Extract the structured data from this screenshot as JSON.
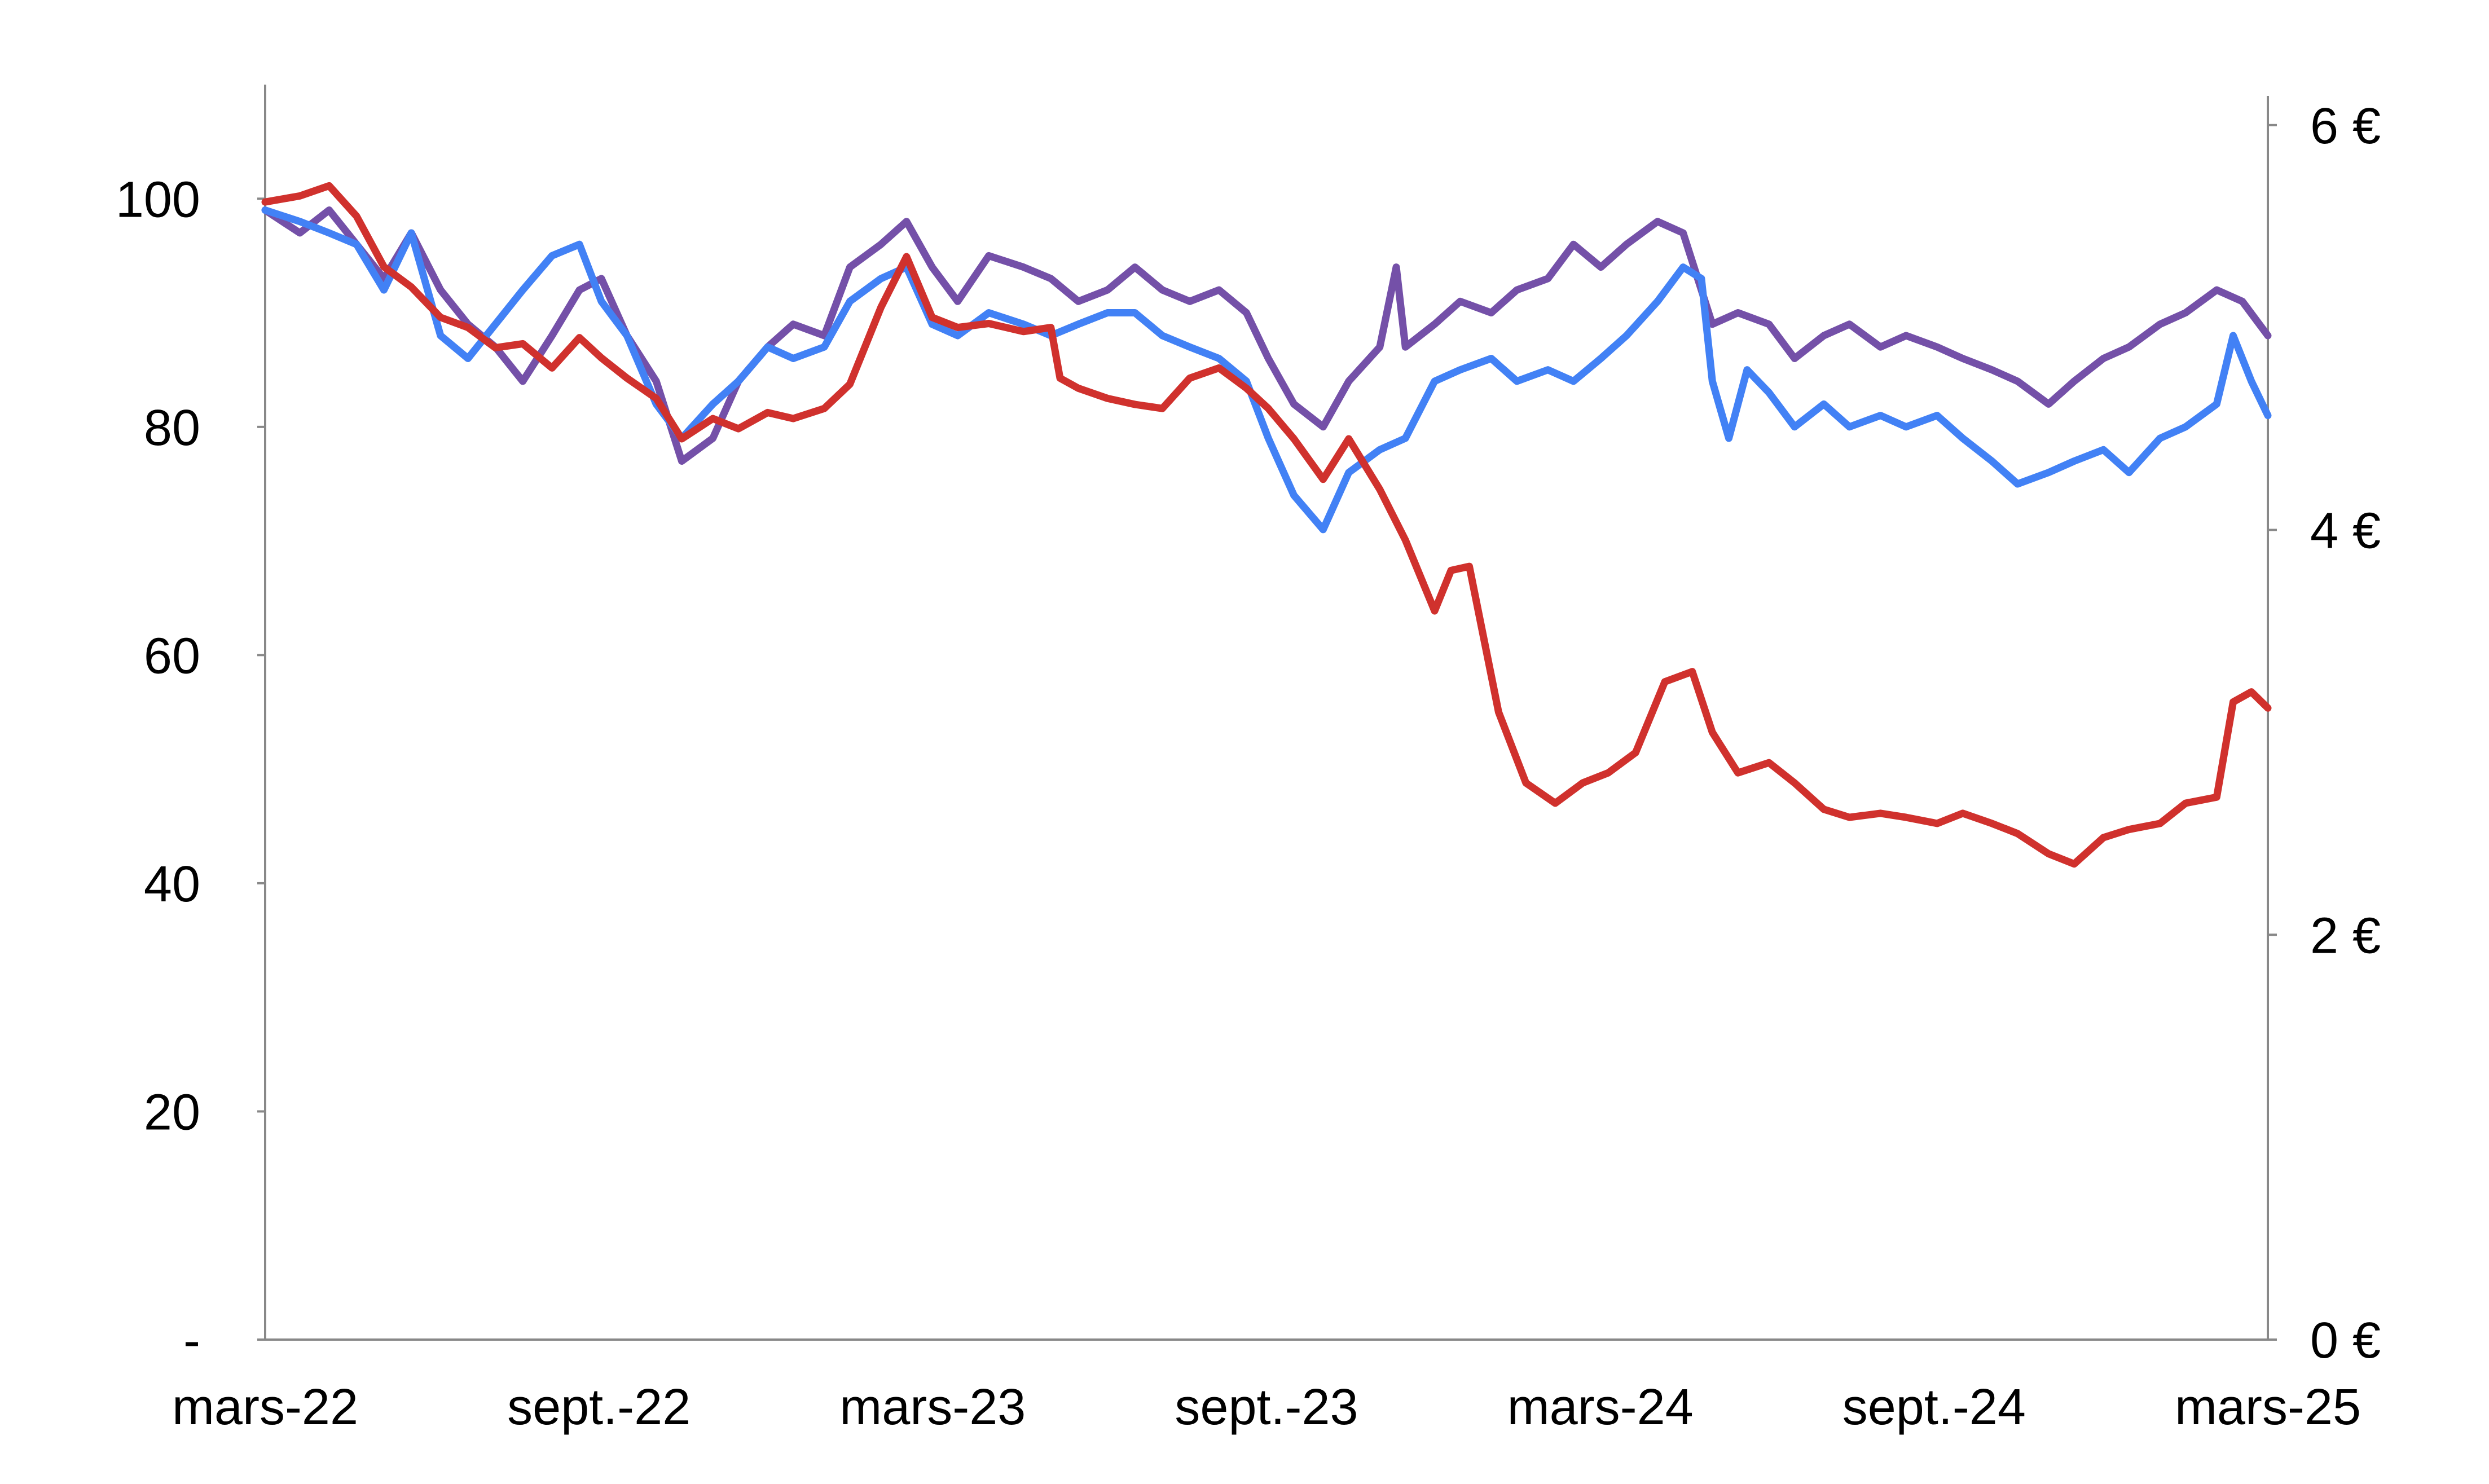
{
  "chart_data": {
    "type": "line",
    "title": "",
    "xlabel": "",
    "ylabel": "",
    "x_ticks": [
      "mars-22",
      "sept.-22",
      "mars-23",
      "sept.-23",
      "mars-24",
      "sept.-24",
      "mars-25"
    ],
    "x_range": [
      "2022-03-01",
      "2025-03-01"
    ],
    "y_left": {
      "range": [
        0,
        110
      ],
      "ticks": [
        {
          "value": 0,
          "label": "-"
        },
        {
          "value": 20,
          "label": "20"
        },
        {
          "value": 40,
          "label": "40"
        },
        {
          "value": 60,
          "label": "60"
        },
        {
          "value": 80,
          "label": "80"
        },
        {
          "value": 100,
          "label": "100"
        }
      ]
    },
    "y_right": {
      "range": [
        0,
        6.2
      ],
      "ticks": [
        {
          "value": 0,
          "label": "0 €"
        },
        {
          "value": 2,
          "label": "2 €"
        },
        {
          "value": 4,
          "label": "4 €"
        },
        {
          "value": 6,
          "label": "6 €"
        }
      ]
    },
    "grid": false,
    "legend": "none",
    "series": [
      {
        "color": "#7450A8",
        "axis": "left",
        "points": [
          [
            "2022-03-01",
            99
          ],
          [
            "2022-03-20",
            97
          ],
          [
            "2022-04-05",
            99
          ],
          [
            "2022-04-20",
            96
          ],
          [
            "2022-05-05",
            93
          ],
          [
            "2022-05-20",
            97
          ],
          [
            "2022-06-05",
            92
          ],
          [
            "2022-06-20",
            89
          ],
          [
            "2022-07-05",
            87
          ],
          [
            "2022-07-20",
            84
          ],
          [
            "2022-08-05",
            88
          ],
          [
            "2022-08-20",
            92
          ],
          [
            "2022-09-01",
            93
          ],
          [
            "2022-09-15",
            88
          ],
          [
            "2022-10-01",
            84
          ],
          [
            "2022-10-15",
            77
          ],
          [
            "2022-11-01",
            79
          ],
          [
            "2022-11-15",
            84
          ],
          [
            "2022-12-01",
            87
          ],
          [
            "2022-12-15",
            89
          ],
          [
            "2023-01-01",
            88
          ],
          [
            "2023-01-15",
            94
          ],
          [
            "2023-02-01",
            96
          ],
          [
            "2023-02-15",
            98
          ],
          [
            "2023-03-01",
            94
          ],
          [
            "2023-03-15",
            91
          ],
          [
            "2023-04-01",
            95
          ],
          [
            "2023-04-20",
            94
          ],
          [
            "2023-05-05",
            93
          ],
          [
            "2023-05-20",
            91
          ],
          [
            "2023-06-05",
            92
          ],
          [
            "2023-06-20",
            94
          ],
          [
            "2023-07-05",
            92
          ],
          [
            "2023-07-20",
            91
          ],
          [
            "2023-08-05",
            92
          ],
          [
            "2023-08-20",
            90
          ],
          [
            "2023-09-01",
            86
          ],
          [
            "2023-09-15",
            82
          ],
          [
            "2023-10-01",
            80
          ],
          [
            "2023-10-15",
            84
          ],
          [
            "2023-11-01",
            87
          ],
          [
            "2023-11-10",
            94
          ],
          [
            "2023-11-15",
            87
          ],
          [
            "2023-12-01",
            89
          ],
          [
            "2023-12-15",
            91
          ],
          [
            "2024-01-01",
            90
          ],
          [
            "2024-01-15",
            92
          ],
          [
            "2024-02-01",
            93
          ],
          [
            "2024-02-15",
            96
          ],
          [
            "2024-03-01",
            94
          ],
          [
            "2024-03-15",
            96
          ],
          [
            "2024-04-01",
            98
          ],
          [
            "2024-04-15",
            97
          ],
          [
            "2024-05-01",
            89
          ],
          [
            "2024-05-15",
            90
          ],
          [
            "2024-06-01",
            89
          ],
          [
            "2024-06-15",
            86
          ],
          [
            "2024-07-01",
            88
          ],
          [
            "2024-07-15",
            89
          ],
          [
            "2024-08-01",
            87
          ],
          [
            "2024-08-15",
            88
          ],
          [
            "2024-09-01",
            87
          ],
          [
            "2024-09-15",
            86
          ],
          [
            "2024-10-01",
            85
          ],
          [
            "2024-10-15",
            84
          ],
          [
            "2024-11-01",
            82
          ],
          [
            "2024-11-15",
            84
          ],
          [
            "2024-12-01",
            86
          ],
          [
            "2024-12-15",
            87
          ],
          [
            "2025-01-01",
            89
          ],
          [
            "2025-01-15",
            90
          ],
          [
            "2025-02-01",
            92
          ],
          [
            "2025-02-15",
            91
          ],
          [
            "2025-03-01",
            88
          ]
        ]
      },
      {
        "color": "#4281F5",
        "axis": "left",
        "points": [
          [
            "2022-03-01",
            99
          ],
          [
            "2022-03-20",
            98
          ],
          [
            "2022-04-05",
            97
          ],
          [
            "2022-04-20",
            96
          ],
          [
            "2022-05-05",
            92
          ],
          [
            "2022-05-20",
            97
          ],
          [
            "2022-06-05",
            88
          ],
          [
            "2022-06-20",
            86
          ],
          [
            "2022-07-05",
            89
          ],
          [
            "2022-07-20",
            92
          ],
          [
            "2022-08-05",
            95
          ],
          [
            "2022-08-20",
            96
          ],
          [
            "2022-09-01",
            91
          ],
          [
            "2022-09-15",
            88
          ],
          [
            "2022-10-01",
            82
          ],
          [
            "2022-10-15",
            79
          ],
          [
            "2022-11-01",
            82
          ],
          [
            "2022-11-15",
            84
          ],
          [
            "2022-12-01",
            87
          ],
          [
            "2022-12-15",
            86
          ],
          [
            "2023-01-01",
            87
          ],
          [
            "2023-01-15",
            91
          ],
          [
            "2023-02-01",
            93
          ],
          [
            "2023-02-15",
            94
          ],
          [
            "2023-03-01",
            89
          ],
          [
            "2023-03-15",
            88
          ],
          [
            "2023-04-01",
            90
          ],
          [
            "2023-04-20",
            89
          ],
          [
            "2023-05-05",
            88
          ],
          [
            "2023-05-20",
            89
          ],
          [
            "2023-06-05",
            90
          ],
          [
            "2023-06-20",
            90
          ],
          [
            "2023-07-05",
            88
          ],
          [
            "2023-07-20",
            87
          ],
          [
            "2023-08-05",
            86
          ],
          [
            "2023-08-20",
            84
          ],
          [
            "2023-09-01",
            79
          ],
          [
            "2023-09-15",
            74
          ],
          [
            "2023-10-01",
            71
          ],
          [
            "2023-10-15",
            76
          ],
          [
            "2023-11-01",
            78
          ],
          [
            "2023-11-15",
            79
          ],
          [
            "2023-12-01",
            84
          ],
          [
            "2023-12-15",
            85
          ],
          [
            "2024-01-01",
            86
          ],
          [
            "2024-01-15",
            84
          ],
          [
            "2024-02-01",
            85
          ],
          [
            "2024-02-15",
            84
          ],
          [
            "2024-03-01",
            86
          ],
          [
            "2024-03-15",
            88
          ],
          [
            "2024-04-01",
            91
          ],
          [
            "2024-04-15",
            94
          ],
          [
            "2024-04-25",
            93
          ],
          [
            "2024-05-01",
            84
          ],
          [
            "2024-05-10",
            79
          ],
          [
            "2024-05-20",
            85
          ],
          [
            "2024-06-01",
            83
          ],
          [
            "2024-06-15",
            80
          ],
          [
            "2024-07-01",
            82
          ],
          [
            "2024-07-15",
            80
          ],
          [
            "2024-08-01",
            81
          ],
          [
            "2024-08-15",
            80
          ],
          [
            "2024-09-01",
            81
          ],
          [
            "2024-09-15",
            79
          ],
          [
            "2024-10-01",
            77
          ],
          [
            "2024-10-15",
            75
          ],
          [
            "2024-11-01",
            76
          ],
          [
            "2024-11-15",
            77
          ],
          [
            "2024-12-01",
            78
          ],
          [
            "2024-12-15",
            76
          ],
          [
            "2025-01-01",
            79
          ],
          [
            "2025-01-15",
            80
          ],
          [
            "2025-02-01",
            82
          ],
          [
            "2025-02-10",
            88
          ],
          [
            "2025-02-20",
            84
          ],
          [
            "2025-03-01",
            81
          ]
        ]
      },
      {
        "color": "#D0312D",
        "axis": "right",
        "points": [
          [
            "2022-03-01",
            5.62
          ],
          [
            "2022-03-20",
            5.65
          ],
          [
            "2022-04-05",
            5.7
          ],
          [
            "2022-04-20",
            5.55
          ],
          [
            "2022-05-05",
            5.3
          ],
          [
            "2022-05-20",
            5.2
          ],
          [
            "2022-06-05",
            5.05
          ],
          [
            "2022-06-20",
            5.0
          ],
          [
            "2022-07-05",
            4.9
          ],
          [
            "2022-07-20",
            4.92
          ],
          [
            "2022-08-05",
            4.8
          ],
          [
            "2022-08-20",
            4.95
          ],
          [
            "2022-09-01",
            4.85
          ],
          [
            "2022-09-15",
            4.75
          ],
          [
            "2022-10-01",
            4.65
          ],
          [
            "2022-10-15",
            4.45
          ],
          [
            "2022-11-01",
            4.55
          ],
          [
            "2022-11-15",
            4.5
          ],
          [
            "2022-12-01",
            4.58
          ],
          [
            "2022-12-15",
            4.55
          ],
          [
            "2023-01-01",
            4.6
          ],
          [
            "2023-01-15",
            4.72
          ],
          [
            "2023-02-01",
            5.1
          ],
          [
            "2023-02-15",
            5.35
          ],
          [
            "2023-03-01",
            5.05
          ],
          [
            "2023-03-15",
            5.0
          ],
          [
            "2023-04-01",
            5.02
          ],
          [
            "2023-04-20",
            4.98
          ],
          [
            "2023-05-05",
            5.0
          ],
          [
            "2023-05-10",
            4.75
          ],
          [
            "2023-05-20",
            4.7
          ],
          [
            "2023-06-05",
            4.65
          ],
          [
            "2023-06-20",
            4.62
          ],
          [
            "2023-07-05",
            4.6
          ],
          [
            "2023-07-20",
            4.75
          ],
          [
            "2023-08-05",
            4.8
          ],
          [
            "2023-08-20",
            4.7
          ],
          [
            "2023-09-01",
            4.6
          ],
          [
            "2023-09-15",
            4.45
          ],
          [
            "2023-10-01",
            4.25
          ],
          [
            "2023-10-15",
            4.45
          ],
          [
            "2023-11-01",
            4.2
          ],
          [
            "2023-11-15",
            3.95
          ],
          [
            "2023-12-01",
            3.6
          ],
          [
            "2023-12-10",
            3.8
          ],
          [
            "2023-12-20",
            3.82
          ],
          [
            "2024-01-05",
            3.1
          ],
          [
            "2024-01-20",
            2.75
          ],
          [
            "2024-02-05",
            2.65
          ],
          [
            "2024-02-20",
            2.75
          ],
          [
            "2024-03-05",
            2.8
          ],
          [
            "2024-03-20",
            2.9
          ],
          [
            "2024-04-05",
            3.25
          ],
          [
            "2024-04-20",
            3.3
          ],
          [
            "2024-05-01",
            3.0
          ],
          [
            "2024-05-15",
            2.8
          ],
          [
            "2024-06-01",
            2.85
          ],
          [
            "2024-06-15",
            2.75
          ],
          [
            "2024-07-01",
            2.62
          ],
          [
            "2024-07-15",
            2.58
          ],
          [
            "2024-08-01",
            2.6
          ],
          [
            "2024-08-15",
            2.58
          ],
          [
            "2024-09-01",
            2.55
          ],
          [
            "2024-09-15",
            2.6
          ],
          [
            "2024-10-01",
            2.55
          ],
          [
            "2024-10-15",
            2.5
          ],
          [
            "2024-11-01",
            2.4
          ],
          [
            "2024-11-15",
            2.35
          ],
          [
            "2024-12-01",
            2.48
          ],
          [
            "2024-12-15",
            2.52
          ],
          [
            "2025-01-01",
            2.55
          ],
          [
            "2025-01-15",
            2.65
          ],
          [
            "2025-02-01",
            2.68
          ],
          [
            "2025-02-10",
            3.15
          ],
          [
            "2025-02-20",
            3.2
          ],
          [
            "2025-03-01",
            3.12
          ]
        ]
      }
    ]
  }
}
